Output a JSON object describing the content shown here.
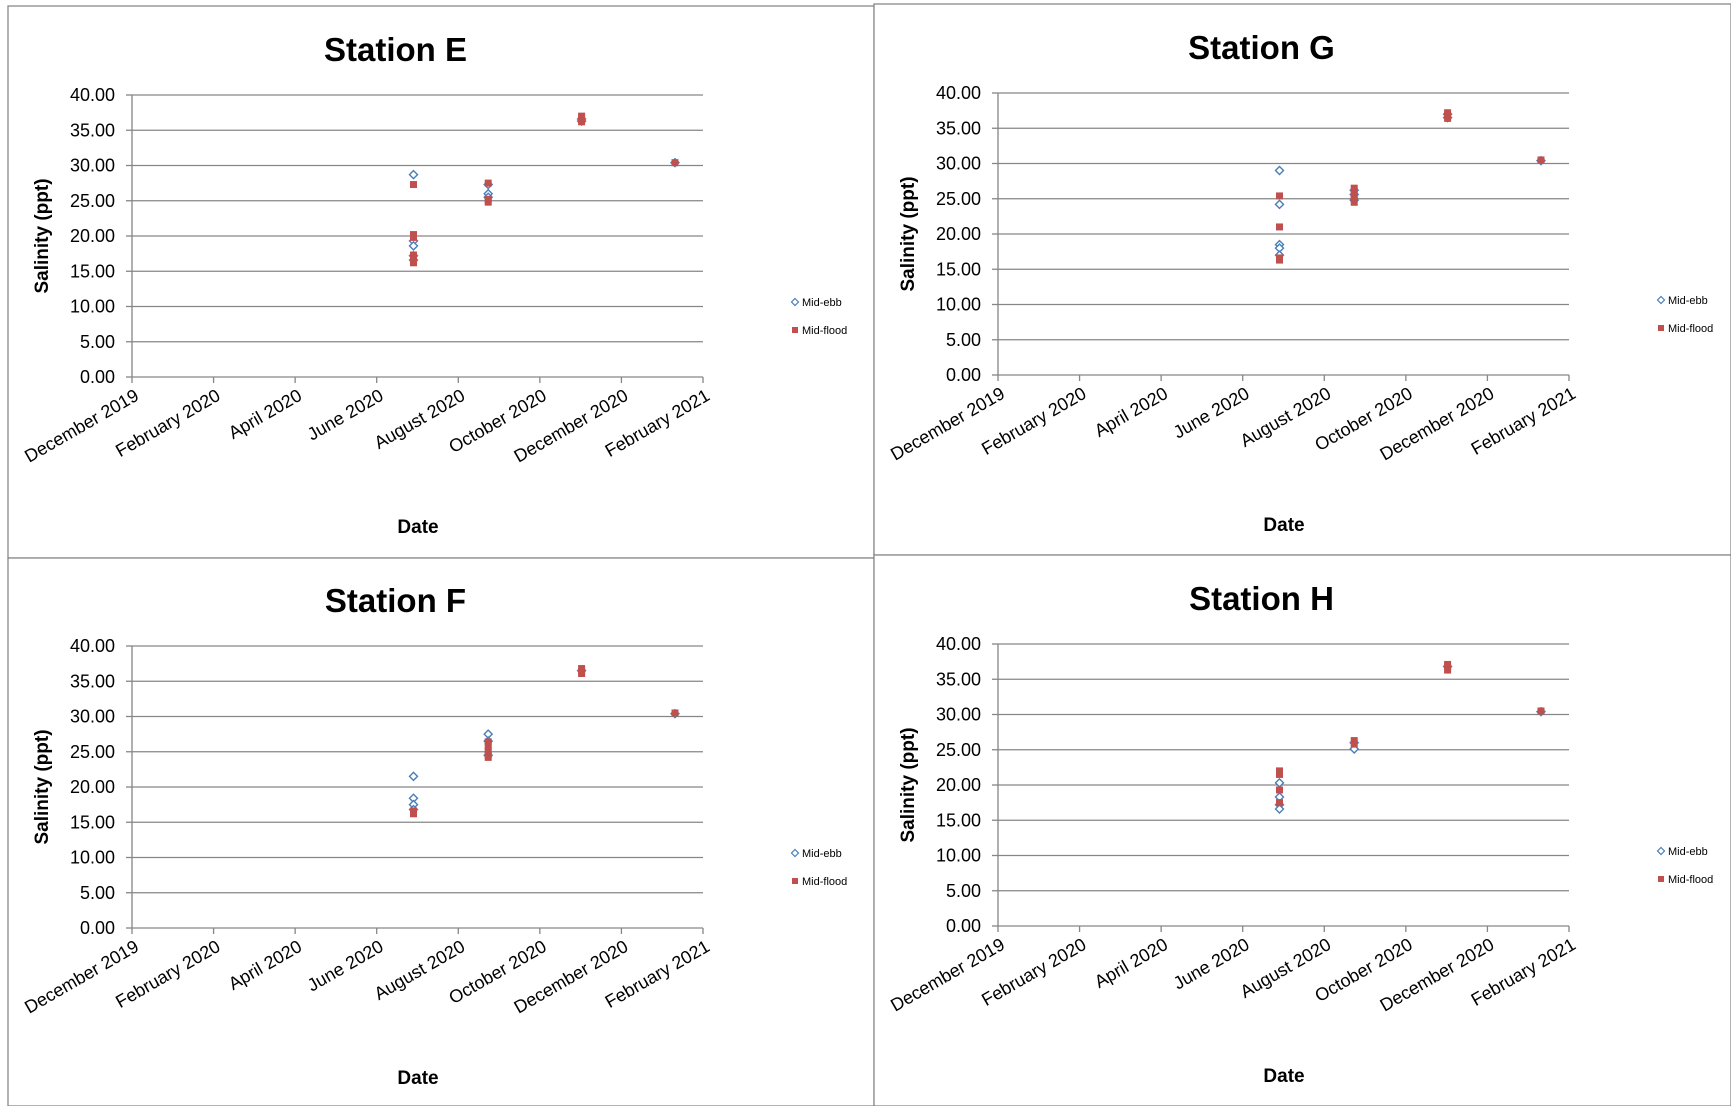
{
  "colors": {
    "mid_ebb": "#4A7EBB",
    "mid_flood": "#C0504D",
    "grid": "#868686",
    "border": "#808080"
  },
  "chart_data": [
    {
      "type": "scatter",
      "title": "Station E",
      "xlabel": "Date",
      "ylabel": "Salinity (ppt)",
      "x_ticks": [
        "December 2019",
        "February 2020",
        "April 2020",
        "June 2020",
        "August 2020",
        "October 2020",
        "December 2020",
        "February 2021"
      ],
      "xlim": [
        "2019-12-01",
        "2021-02-01"
      ],
      "y_ticks": [
        "0.00",
        "5.00",
        "10.00",
        "15.00",
        "20.00",
        "25.00",
        "30.00",
        "35.00",
        "40.00"
      ],
      "ylim": [
        0,
        40
      ],
      "grid": true,
      "legend": "right",
      "series": [
        {
          "name": "Mid-ebb",
          "marker": "diamond",
          "points": [
            [
              "2020-06-29",
              28.7
            ],
            [
              "2020-06-29",
              19.3
            ],
            [
              "2020-06-29",
              18.6
            ],
            [
              "2020-06-29",
              17.2
            ],
            [
              "2020-06-29",
              16.6
            ],
            [
              "2020-08-24",
              26.0
            ],
            [
              "2020-08-24",
              25.5
            ],
            [
              "2020-08-24",
              27.3
            ],
            [
              "2020-11-02",
              36.6
            ],
            [
              "2020-11-02",
              36.3
            ],
            [
              "2021-01-11",
              30.4
            ]
          ]
        },
        {
          "name": "Mid-flood",
          "marker": "square",
          "points": [
            [
              "2020-06-29",
              27.3
            ],
            [
              "2020-06-29",
              20.2
            ],
            [
              "2020-06-29",
              19.8
            ],
            [
              "2020-06-29",
              17.3
            ],
            [
              "2020-06-29",
              16.5
            ],
            [
              "2020-06-29",
              16.2
            ],
            [
              "2020-08-24",
              27.5
            ],
            [
              "2020-08-24",
              25.2
            ],
            [
              "2020-08-24",
              24.8
            ],
            [
              "2020-11-02",
              37.0
            ],
            [
              "2020-11-02",
              36.6
            ],
            [
              "2020-11-02",
              36.2
            ],
            [
              "2021-01-11",
              30.4
            ]
          ]
        }
      ]
    },
    {
      "type": "scatter",
      "title": "Station G",
      "xlabel": "Date",
      "ylabel": "Salinity (ppt)",
      "x_ticks": [
        "December 2019",
        "February 2020",
        "April 2020",
        "June 2020",
        "August 2020",
        "October 2020",
        "December 2020",
        "February 2021"
      ],
      "xlim": [
        "2019-12-01",
        "2021-02-01"
      ],
      "y_ticks": [
        "0.00",
        "5.00",
        "10.00",
        "15.00",
        "20.00",
        "25.00",
        "30.00",
        "35.00",
        "40.00"
      ],
      "ylim": [
        0,
        40
      ],
      "grid": true,
      "legend": "right",
      "series": [
        {
          "name": "Mid-ebb",
          "marker": "diamond",
          "points": [
            [
              "2020-06-29",
              29.0
            ],
            [
              "2020-06-29",
              24.2
            ],
            [
              "2020-06-29",
              18.5
            ],
            [
              "2020-06-29",
              18.0
            ],
            [
              "2020-06-29",
              17.0
            ],
            [
              "2020-08-24",
              26.2
            ],
            [
              "2020-08-24",
              25.6
            ],
            [
              "2020-08-24",
              24.8
            ],
            [
              "2020-11-02",
              37.0
            ],
            [
              "2020-11-02",
              36.5
            ],
            [
              "2021-01-11",
              30.4
            ]
          ]
        },
        {
          "name": "Mid-flood",
          "marker": "square",
          "points": [
            [
              "2020-06-29",
              25.4
            ],
            [
              "2020-06-29",
              21.0
            ],
            [
              "2020-06-29",
              16.6
            ],
            [
              "2020-06-29",
              16.3
            ],
            [
              "2020-08-24",
              26.5
            ],
            [
              "2020-08-24",
              26.0
            ],
            [
              "2020-08-24",
              25.4
            ],
            [
              "2020-08-24",
              25.0
            ],
            [
              "2020-08-24",
              24.5
            ],
            [
              "2020-11-02",
              37.2
            ],
            [
              "2020-11-02",
              36.8
            ],
            [
              "2020-11-02",
              36.4
            ],
            [
              "2021-01-11",
              30.5
            ]
          ]
        }
      ]
    },
    {
      "type": "scatter",
      "title": "Station F",
      "xlabel": "Date",
      "ylabel": "Salinity (ppt)",
      "x_ticks": [
        "December 2019",
        "February 2020",
        "April 2020",
        "June 2020",
        "August 2020",
        "October 2020",
        "December 2020",
        "February 2021"
      ],
      "xlim": [
        "2019-12-01",
        "2021-02-01"
      ],
      "y_ticks": [
        "0.00",
        "5.00",
        "10.00",
        "15.00",
        "20.00",
        "25.00",
        "30.00",
        "35.00",
        "40.00"
      ],
      "ylim": [
        0,
        40
      ],
      "grid": true,
      "legend": "right",
      "series": [
        {
          "name": "Mid-ebb",
          "marker": "diamond",
          "points": [
            [
              "2020-06-29",
              21.5
            ],
            [
              "2020-06-29",
              18.4
            ],
            [
              "2020-06-29",
              17.5
            ],
            [
              "2020-06-29",
              16.8
            ],
            [
              "2020-08-24",
              27.5
            ],
            [
              "2020-08-24",
              26.5
            ],
            [
              "2020-08-24",
              24.5
            ],
            [
              "2020-11-02",
              36.5
            ],
            [
              "2021-01-11",
              30.4
            ]
          ]
        },
        {
          "name": "Mid-flood",
          "marker": "square",
          "points": [
            [
              "2020-06-29",
              16.6
            ],
            [
              "2020-06-29",
              16.2
            ],
            [
              "2020-08-24",
              26.4
            ],
            [
              "2020-08-24",
              25.8
            ],
            [
              "2020-08-24",
              25.1
            ],
            [
              "2020-08-24",
              24.6
            ],
            [
              "2020-08-24",
              24.2
            ],
            [
              "2020-11-02",
              36.8
            ],
            [
              "2020-11-02",
              36.4
            ],
            [
              "2020-11-02",
              36.1
            ],
            [
              "2021-01-11",
              30.5
            ]
          ]
        }
      ]
    },
    {
      "type": "scatter",
      "title": "Station H",
      "xlabel": "Date",
      "ylabel": "Salinity (ppt)",
      "x_ticks": [
        "December 2019",
        "February 2020",
        "April 2020",
        "June 2020",
        "August 2020",
        "October 2020",
        "December 2020",
        "February 2021"
      ],
      "xlim": [
        "2019-12-01",
        "2021-02-01"
      ],
      "y_ticks": [
        "0.00",
        "5.00",
        "10.00",
        "15.00",
        "20.00",
        "25.00",
        "30.00",
        "35.00",
        "40.00"
      ],
      "ylim": [
        0,
        40
      ],
      "grid": true,
      "legend": "right",
      "series": [
        {
          "name": "Mid-ebb",
          "marker": "diamond",
          "points": [
            [
              "2020-06-29",
              20.3
            ],
            [
              "2020-06-29",
              18.3
            ],
            [
              "2020-06-29",
              17.2
            ],
            [
              "2020-06-29",
              16.6
            ],
            [
              "2020-08-24",
              25.1
            ],
            [
              "2020-08-24",
              26.0
            ],
            [
              "2020-11-02",
              36.8
            ],
            [
              "2021-01-11",
              30.4
            ]
          ]
        },
        {
          "name": "Mid-flood",
          "marker": "square",
          "points": [
            [
              "2020-06-29",
              22.0
            ],
            [
              "2020-06-29",
              21.5
            ],
            [
              "2020-06-29",
              19.3
            ],
            [
              "2020-06-29",
              17.5
            ],
            [
              "2020-08-24",
              26.3
            ],
            [
              "2020-08-24",
              25.8
            ],
            [
              "2020-11-02",
              37.1
            ],
            [
              "2020-11-02",
              36.7
            ],
            [
              "2020-11-02",
              36.3
            ],
            [
              "2021-01-11",
              30.5
            ]
          ]
        }
      ]
    }
  ]
}
